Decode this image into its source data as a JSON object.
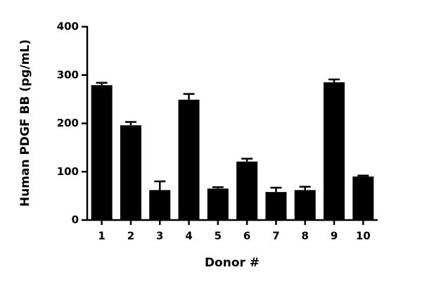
{
  "chart_data": {
    "type": "bar",
    "x_label": "Donor #",
    "y_label": "Human PDGF BB (pg/mL)",
    "categories": [
      "1",
      "2",
      "3",
      "4",
      "5",
      "6",
      "7",
      "8",
      "9",
      "10"
    ],
    "values": [
      279,
      196,
      62,
      249,
      65,
      121,
      58,
      62,
      285,
      90
    ],
    "errors": [
      5,
      7,
      18,
      12,
      3,
      6,
      9,
      7,
      6,
      2
    ],
    "color": "#000000",
    "ylim": [
      0,
      400
    ],
    "yticks": [
      0,
      100,
      200,
      300,
      400
    ]
  }
}
